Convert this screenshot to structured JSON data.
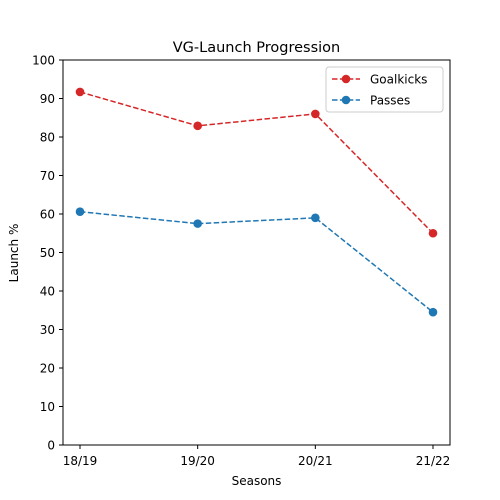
{
  "chart_data": {
    "type": "line",
    "title": "VG-Launch Progression",
    "xlabel": "Seasons",
    "ylabel": "Launch %",
    "categories": [
      "18/19",
      "19/20",
      "20/21",
      "21/22"
    ],
    "ylim": [
      0,
      100
    ],
    "yticks": [
      0,
      10,
      20,
      30,
      40,
      50,
      60,
      70,
      80,
      90,
      100
    ],
    "grid": false,
    "legend_position": "top-right",
    "series": [
      {
        "name": "Goalkicks",
        "color": "#d62728",
        "values": [
          91.7,
          82.9,
          86.0,
          55.0
        ]
      },
      {
        "name": "Passes",
        "color": "#1f77b4",
        "values": [
          60.6,
          57.5,
          59.0,
          34.5
        ]
      }
    ]
  }
}
